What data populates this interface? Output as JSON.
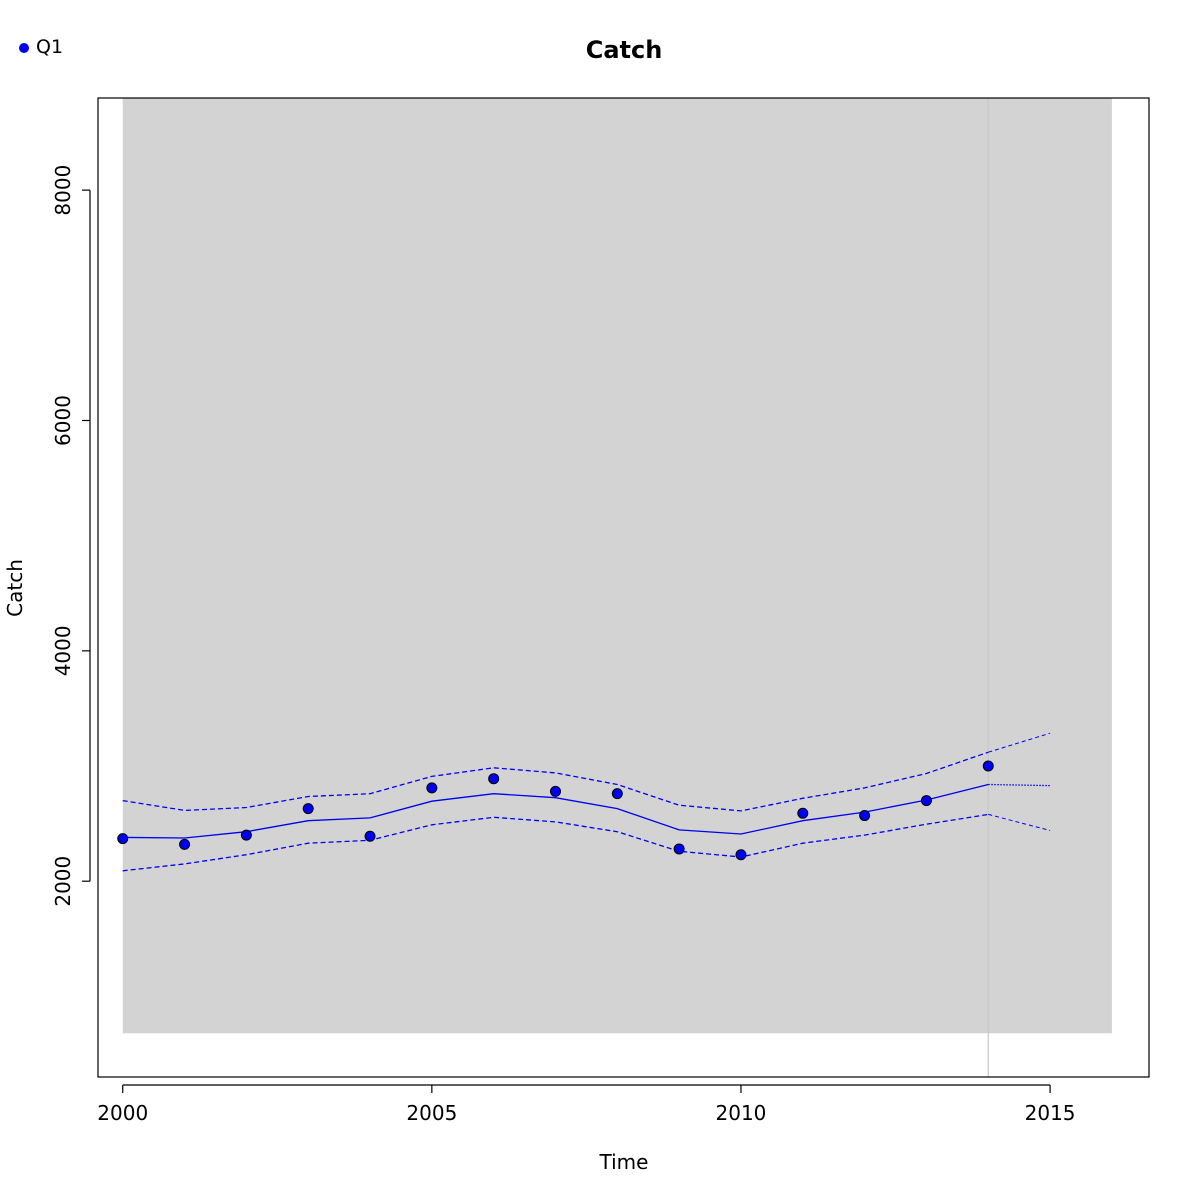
{
  "chart_data": {
    "type": "line",
    "title": "Catch",
    "xlabel": "Time",
    "ylabel": "Catch",
    "xlim": [
      1999.6,
      2016.6
    ],
    "ylim": [
      300,
      8800
    ],
    "x_ticks": [
      2000,
      2005,
      2010,
      2015
    ],
    "y_ticks": [
      2000,
      4000,
      6000,
      8000
    ],
    "shaded_region": {
      "x": [
        2000,
        2016
      ],
      "y": [
        680,
        8800
      ],
      "color": "#d3d3d3"
    },
    "vertical_line": {
      "x": 2014,
      "color": "#c8c8c8"
    },
    "legend": {
      "placement": "top-left",
      "entries": [
        {
          "name": "Q1",
          "color": "#0000ee"
        }
      ]
    },
    "series": [
      {
        "name": "Q1",
        "kind": "observed-points",
        "color": "#0000ee",
        "x": [
          2000,
          2001,
          2002,
          2003,
          2004,
          2005,
          2006,
          2007,
          2008,
          2009,
          2010,
          2011,
          2012,
          2013,
          2014
        ],
        "values": [
          2370,
          2320,
          2400,
          2630,
          2390,
          2810,
          2890,
          2780,
          2760,
          2280,
          2230,
          2590,
          2570,
          2700,
          3000
        ]
      },
      {
        "kind": "fitted-line",
        "color": "#0000ee",
        "x": [
          2000,
          2001,
          2002,
          2003,
          2004,
          2005,
          2006,
          2007,
          2008,
          2009,
          2010,
          2011,
          2012,
          2013,
          2014
        ],
        "values": [
          2380,
          2375,
          2430,
          2525,
          2550,
          2695,
          2760,
          2725,
          2630,
          2445,
          2410,
          2525,
          2600,
          2705,
          2840
        ]
      },
      {
        "kind": "upper-band",
        "color": "#0000ee",
        "x": [
          2000,
          2001,
          2002,
          2003,
          2004,
          2005,
          2006,
          2007,
          2008,
          2009,
          2010,
          2011,
          2012,
          2013,
          2014
        ],
        "values": [
          2700,
          2615,
          2640,
          2735,
          2760,
          2910,
          2985,
          2940,
          2840,
          2660,
          2610,
          2720,
          2810,
          2935,
          3120
        ]
      },
      {
        "kind": "lower-band",
        "color": "#0000ee",
        "x": [
          2000,
          2001,
          2002,
          2003,
          2004,
          2005,
          2006,
          2007,
          2008,
          2009,
          2010,
          2011,
          2012,
          2013,
          2014
        ],
        "values": [
          2090,
          2150,
          2230,
          2330,
          2355,
          2490,
          2555,
          2515,
          2430,
          2260,
          2210,
          2330,
          2400,
          2495,
          2580
        ]
      },
      {
        "kind": "forecast-mean",
        "color": "#0000ee",
        "x": [
          2014,
          2015
        ],
        "values": [
          2840,
          2830
        ]
      },
      {
        "kind": "forecast-upper",
        "color": "#0000ee",
        "x": [
          2014,
          2015
        ],
        "values": [
          3120,
          3285
        ]
      },
      {
        "kind": "forecast-lower",
        "color": "#0000ee",
        "x": [
          2014,
          2015
        ],
        "values": [
          2580,
          2440
        ]
      }
    ]
  }
}
